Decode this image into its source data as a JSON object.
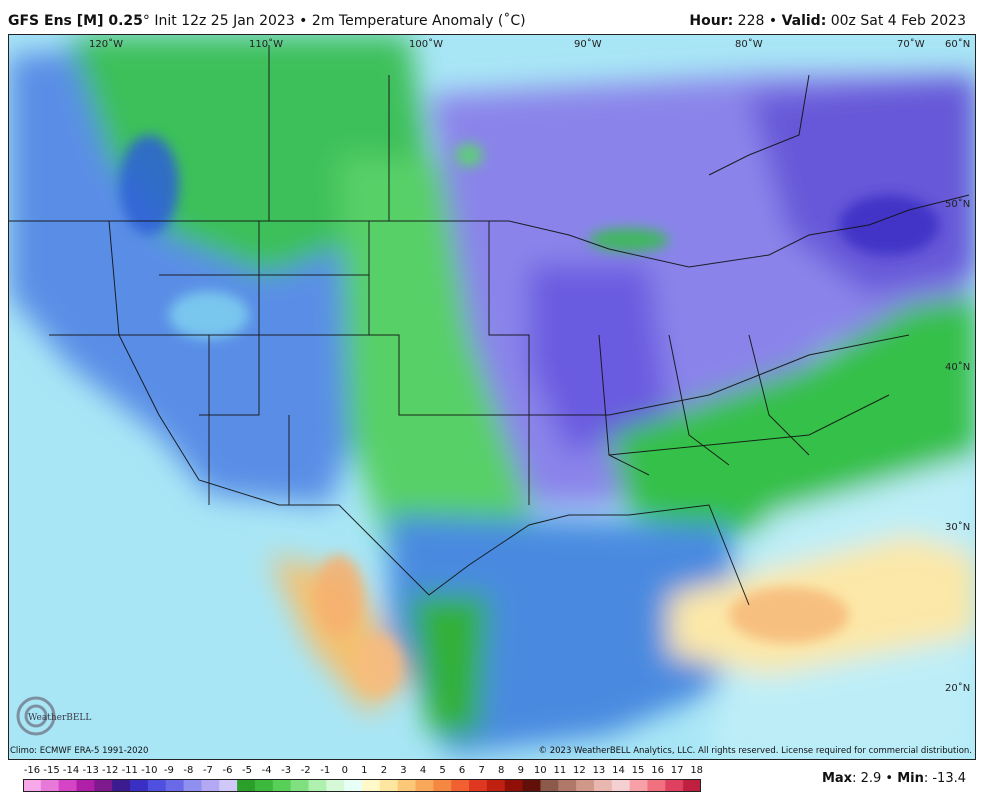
{
  "header": {
    "model": "GFS Ens [M] 0.25",
    "degree_mark": "°",
    "init": " Init 12z 25 Jan 2023",
    "sep": " • ",
    "field": "2m Temperature Anomaly (˚C)",
    "hour_label": "Hour:",
    "hour_value": " 228",
    "valid_label": "Valid:",
    "valid_value": " 00z Sat 4 Feb 2023"
  },
  "map": {
    "lon_labels": [
      "120˚W",
      "110˚W",
      "100˚W",
      "90˚W",
      "80˚W",
      "70˚W",
      "60˚N"
    ],
    "lat_labels": [
      "50˚N",
      "40˚N",
      "30˚N",
      "20˚N"
    ]
  },
  "footer": {
    "climo": "Climo: ECMWF ERA-5 1991-2020",
    "copyright": "© 2023 WeatherBELL Analytics, LLC. All rights reserved. License required for commercial distribution.",
    "logo_text": "WeatherBELL",
    "max_label": "Max",
    "max_value": ": 2.9",
    "min_label": "Min",
    "min_value": ": -13.4"
  },
  "colorbar": {
    "ticks": [
      "-16",
      "-15",
      "-14",
      "-13",
      "-12",
      "-11",
      "-10",
      "-9",
      "-8",
      "-7",
      "-6",
      "-5",
      "-4",
      "-3",
      "-2",
      "-1",
      "0",
      "1",
      "2",
      "3",
      "4",
      "5",
      "6",
      "7",
      "8",
      "9",
      "10",
      "11",
      "12",
      "13",
      "14",
      "15",
      "16",
      "17",
      "18"
    ],
    "colors": [
      "#f7a8e8",
      "#e879d8",
      "#d444c4",
      "#b01fa8",
      "#7e1a8e",
      "#3b1b8f",
      "#3a2fc4",
      "#4f4fe0",
      "#6a6ae8",
      "#8f8ff0",
      "#b3a8f4",
      "#cfc8f8",
      "#2aa02a",
      "#3cb83c",
      "#58d058",
      "#80e080",
      "#aef0ae",
      "#d6f8d6",
      "#e8fff8",
      "#fff8c8",
      "#fde6a0",
      "#fbc878",
      "#f8a858",
      "#f48840",
      "#f06030",
      "#e03820",
      "#c02010",
      "#901008",
      "#601008",
      "#8c5a4a",
      "#b07868",
      "#d09888",
      "#e8b8b0",
      "#f4d0d0",
      "#f8a0a8",
      "#f07080",
      "#e04060",
      "#c02040"
    ]
  }
}
